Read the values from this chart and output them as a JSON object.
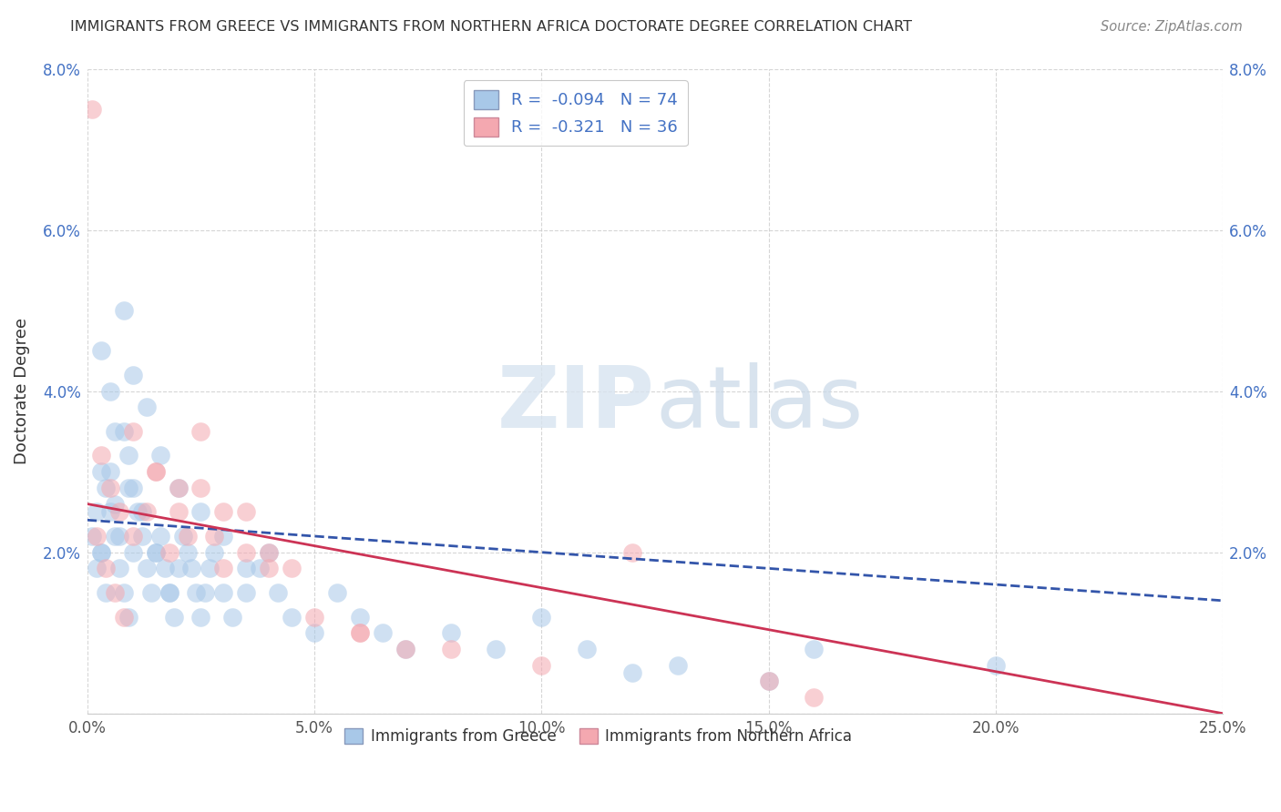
{
  "title": "IMMIGRANTS FROM GREECE VS IMMIGRANTS FROM NORTHERN AFRICA DOCTORATE DEGREE CORRELATION CHART",
  "source": "Source: ZipAtlas.com",
  "xlabel_blue": "Immigrants from Greece",
  "xlabel_pink": "Immigrants from Northern Africa",
  "ylabel": "Doctorate Degree",
  "xlim": [
    0.0,
    0.25
  ],
  "ylim": [
    0.0,
    0.08
  ],
  "xtick_vals": [
    0.0,
    0.05,
    0.1,
    0.15,
    0.2,
    0.25
  ],
  "xtick_labels": [
    "0.0%",
    "5.0%",
    "10.0%",
    "15.0%",
    "20.0%",
    "25.0%"
  ],
  "ytick_vals": [
    0.0,
    0.02,
    0.04,
    0.06,
    0.08
  ],
  "ytick_labels": [
    "",
    "2.0%",
    "4.0%",
    "6.0%",
    "8.0%"
  ],
  "blue_color": "#a8c8e8",
  "pink_color": "#f4a8b0",
  "blue_line_color": "#3355aa",
  "pink_line_color": "#cc3355",
  "tick_color": "#4472c4",
  "text_color": "#333333",
  "grid_color": "#cccccc",
  "legend_R_blue": "-0.094",
  "legend_N_blue": "74",
  "legend_R_pink": "-0.321",
  "legend_N_pink": "36",
  "blue_trend_start_y": 0.024,
  "blue_trend_end_y": 0.014,
  "pink_trend_start_y": 0.026,
  "pink_trend_end_y": 0.0,
  "blue_x": [
    0.001,
    0.002,
    0.003,
    0.004,
    0.005,
    0.006,
    0.007,
    0.008,
    0.009,
    0.01,
    0.002,
    0.003,
    0.004,
    0.005,
    0.006,
    0.007,
    0.008,
    0.009,
    0.01,
    0.011,
    0.012,
    0.013,
    0.014,
    0.015,
    0.016,
    0.017,
    0.018,
    0.019,
    0.02,
    0.021,
    0.022,
    0.023,
    0.024,
    0.025,
    0.026,
    0.027,
    0.028,
    0.03,
    0.032,
    0.035,
    0.038,
    0.04,
    0.042,
    0.045,
    0.05,
    0.055,
    0.06,
    0.065,
    0.07,
    0.08,
    0.09,
    0.1,
    0.11,
    0.12,
    0.13,
    0.15,
    0.003,
    0.005,
    0.008,
    0.01,
    0.013,
    0.016,
    0.02,
    0.025,
    0.03,
    0.035,
    0.003,
    0.006,
    0.009,
    0.012,
    0.015,
    0.018,
    0.2,
    0.16
  ],
  "blue_y": [
    0.022,
    0.025,
    0.02,
    0.028,
    0.03,
    0.026,
    0.022,
    0.035,
    0.032,
    0.028,
    0.018,
    0.02,
    0.015,
    0.025,
    0.022,
    0.018,
    0.015,
    0.012,
    0.02,
    0.025,
    0.022,
    0.018,
    0.015,
    0.02,
    0.022,
    0.018,
    0.015,
    0.012,
    0.018,
    0.022,
    0.02,
    0.018,
    0.015,
    0.012,
    0.015,
    0.018,
    0.02,
    0.015,
    0.012,
    0.015,
    0.018,
    0.02,
    0.015,
    0.012,
    0.01,
    0.015,
    0.012,
    0.01,
    0.008,
    0.01,
    0.008,
    0.012,
    0.008,
    0.005,
    0.006,
    0.004,
    0.045,
    0.04,
    0.05,
    0.042,
    0.038,
    0.032,
    0.028,
    0.025,
    0.022,
    0.018,
    0.03,
    0.035,
    0.028,
    0.025,
    0.02,
    0.015,
    0.006,
    0.008
  ],
  "pink_x": [
    0.001,
    0.003,
    0.005,
    0.007,
    0.01,
    0.013,
    0.015,
    0.018,
    0.02,
    0.022,
    0.025,
    0.028,
    0.03,
    0.035,
    0.04,
    0.045,
    0.05,
    0.06,
    0.07,
    0.01,
    0.015,
    0.02,
    0.025,
    0.03,
    0.035,
    0.04,
    0.002,
    0.004,
    0.006,
    0.008,
    0.15,
    0.06,
    0.08,
    0.1,
    0.16,
    0.12
  ],
  "pink_y": [
    0.075,
    0.032,
    0.028,
    0.025,
    0.022,
    0.025,
    0.03,
    0.02,
    0.025,
    0.022,
    0.028,
    0.022,
    0.018,
    0.025,
    0.02,
    0.018,
    0.012,
    0.01,
    0.008,
    0.035,
    0.03,
    0.028,
    0.035,
    0.025,
    0.02,
    0.018,
    0.022,
    0.018,
    0.015,
    0.012,
    0.004,
    0.01,
    0.008,
    0.006,
    0.002,
    0.02
  ]
}
